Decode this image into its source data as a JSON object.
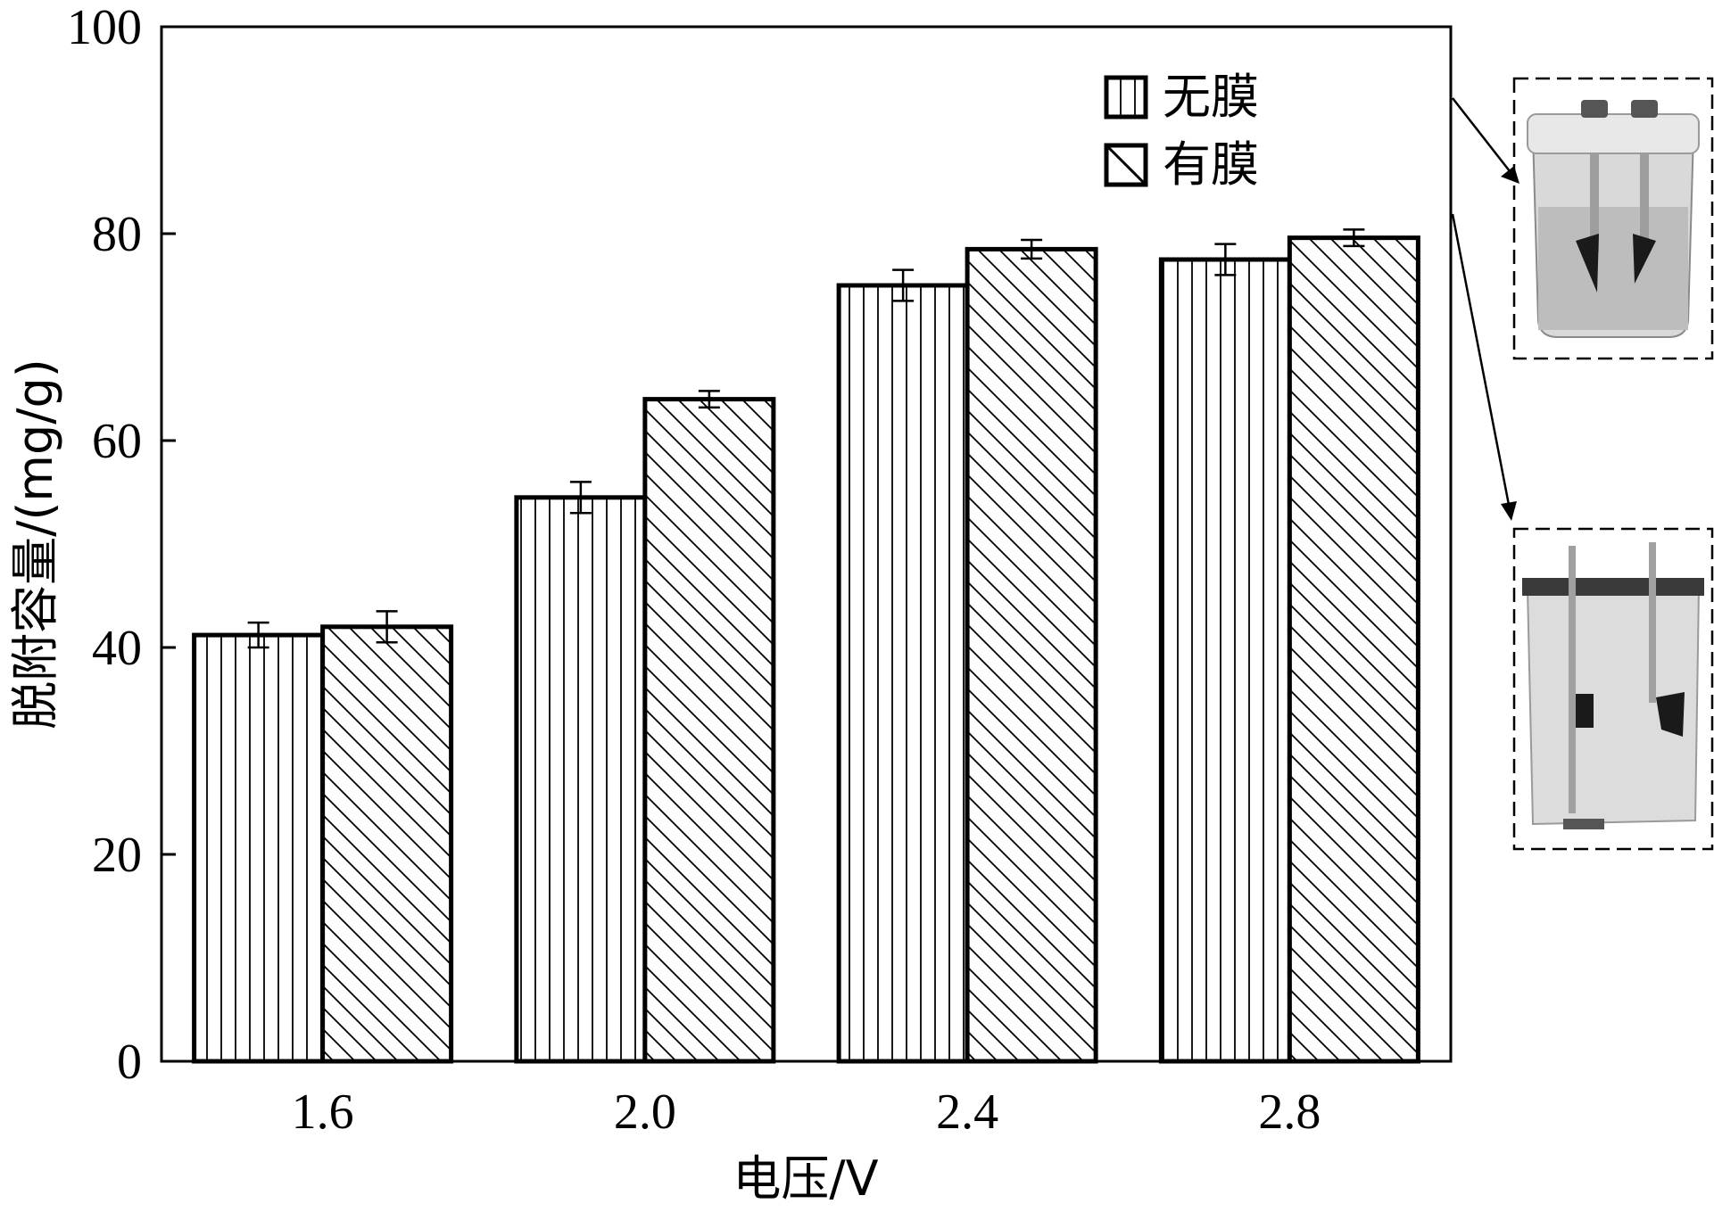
{
  "chart_data": {
    "type": "bar",
    "categories": [
      "1.6",
      "2.0",
      "2.4",
      "2.8"
    ],
    "series": [
      {
        "name": "无膜",
        "pattern": "vertical-lines",
        "values": [
          41.2,
          54.5,
          75.0,
          77.5
        ],
        "errors": [
          1.2,
          1.5,
          1.5,
          1.5
        ]
      },
      {
        "name": "有膜",
        "pattern": "diagonal-lines",
        "values": [
          42.0,
          64.0,
          78.5,
          79.6
        ],
        "errors": [
          1.5,
          0.8,
          0.9,
          0.8
        ]
      }
    ],
    "xlabel": "电压/V",
    "ylabel": "脱附容量/(mg/g)",
    "ylim": [
      0,
      100
    ],
    "yticks": [
      0,
      20,
      40,
      60,
      80,
      100
    ],
    "grid": false,
    "legend_position": "top-right",
    "colors": {
      "bar_stroke": "#000000",
      "hatch": "#000000",
      "background": "#ffffff"
    },
    "insets": [
      {
        "name": "beaker-cell-photo",
        "points_to": "有膜 / 无膜 legend",
        "position": "upper-right"
      },
      {
        "name": "rectangular-cell-photo",
        "position": "lower-right"
      }
    ]
  }
}
